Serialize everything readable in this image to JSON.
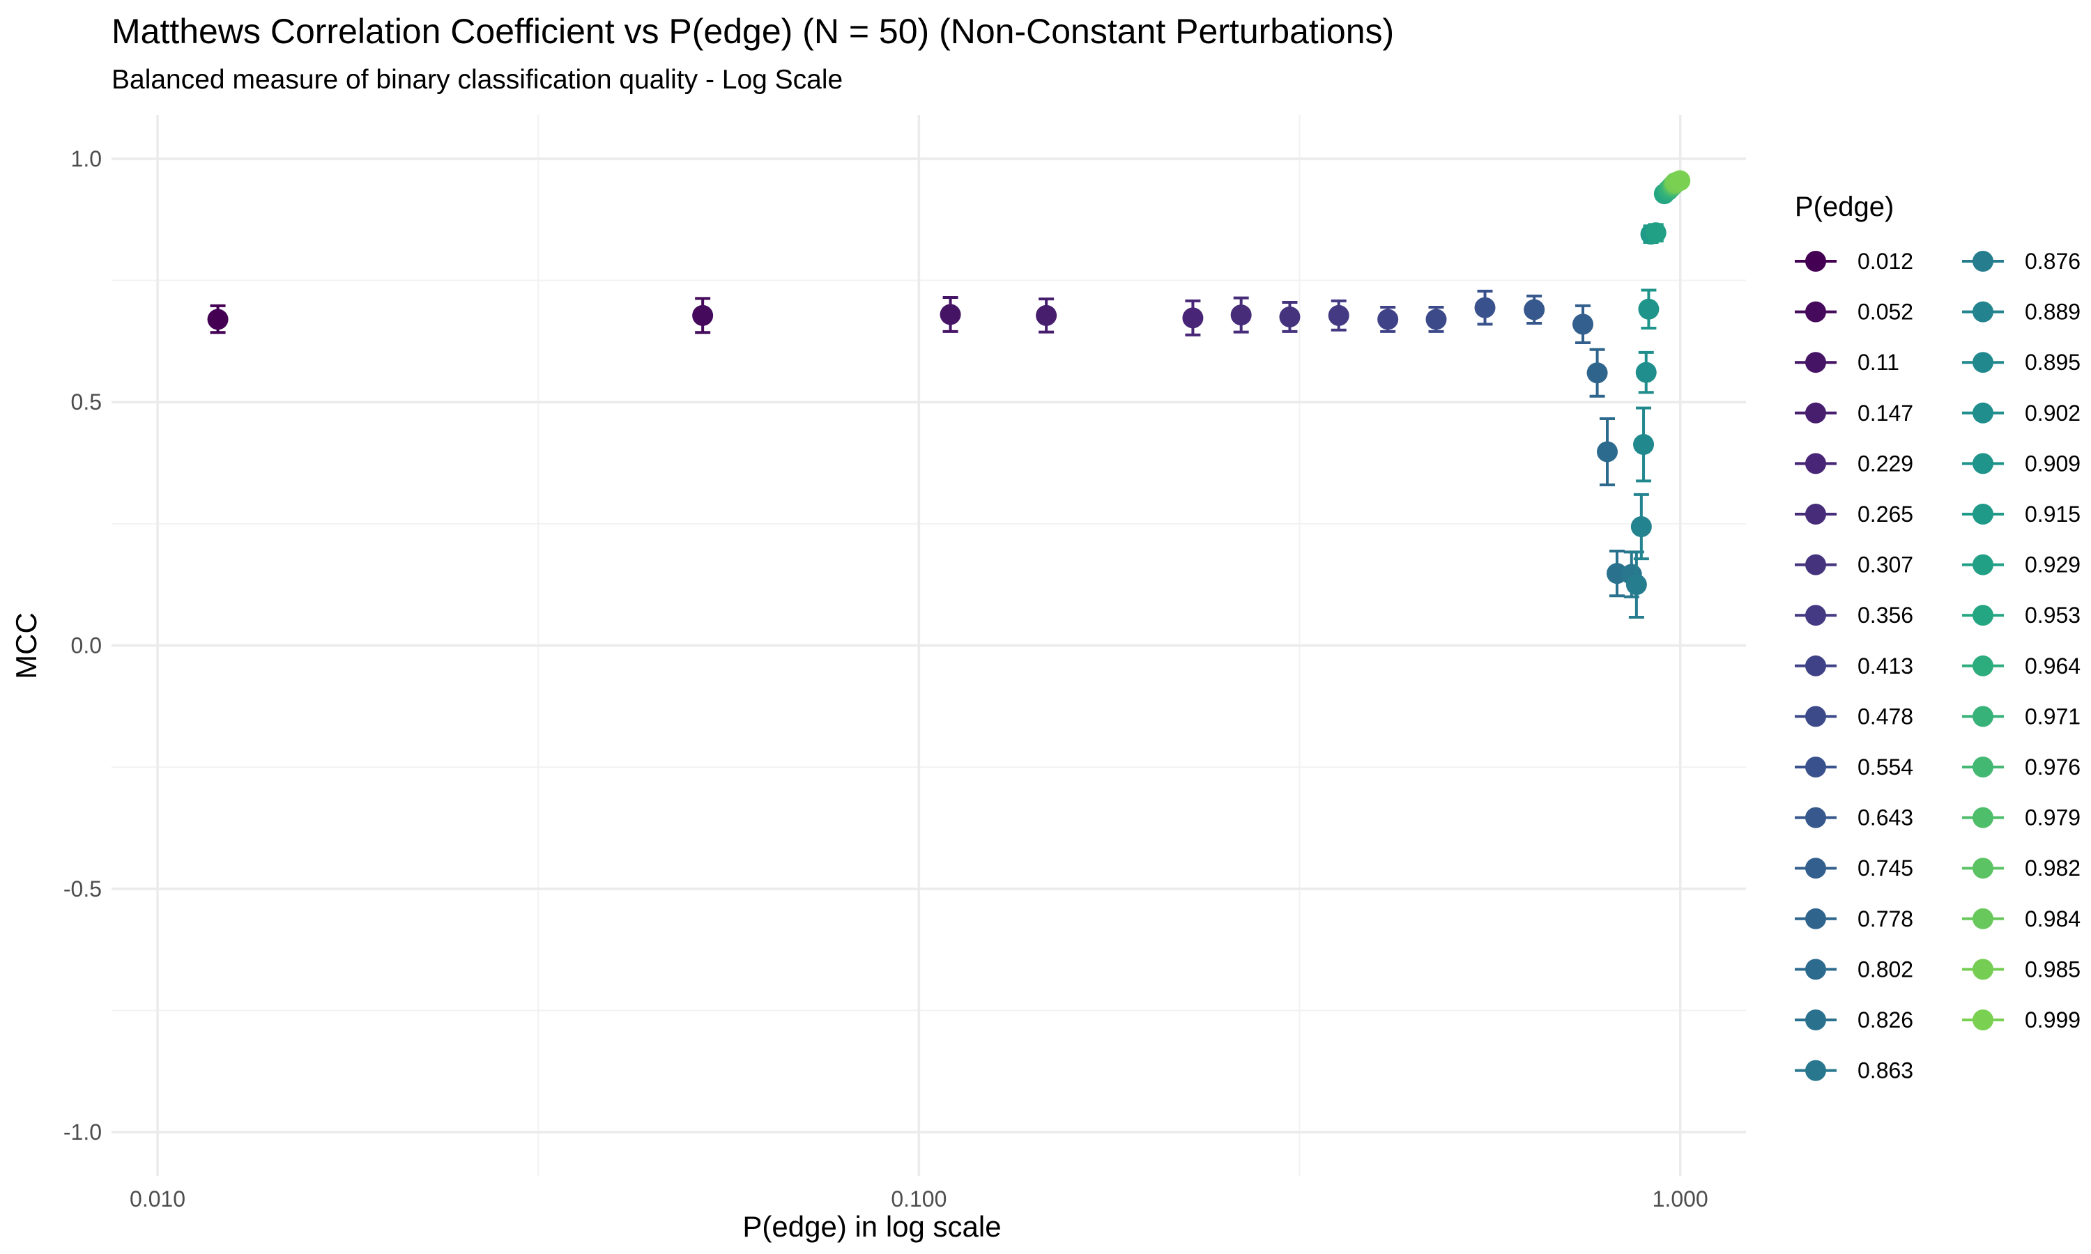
{
  "chart_data": {
    "type": "scatter",
    "title": "Matthews Correlation Coefficient vs P(edge) (N = 50) (Non-Constant Perturbations)",
    "subtitle": "Balanced measure of binary classification quality - Log Scale",
    "xlabel": "P(edge) in log scale",
    "ylabel": "MCC",
    "x_scale": "log10",
    "xlim": [
      0.0087,
      1.22
    ],
    "ylim": [
      -1.09,
      1.09
    ],
    "x_ticks": [
      0.01,
      0.1,
      1.0
    ],
    "x_tick_labels": [
      "0.010",
      "0.100",
      "1.000"
    ],
    "y_ticks": [
      -1.0,
      -0.5,
      0.0,
      0.5,
      1.0
    ],
    "y_tick_labels": [
      "-1.0",
      "-0.5",
      "0.0",
      "0.5",
      "1.0"
    ],
    "grid": true,
    "legend_title": "P(edge)",
    "legend_position": "right",
    "error_bars": true,
    "points": [
      {
        "label": "0.012",
        "x": 0.012,
        "y": 0.67,
        "ymin": 0.643,
        "ymax": 0.698,
        "color": "#440154"
      },
      {
        "label": "0.052",
        "x": 0.052,
        "y": 0.678,
        "ymin": 0.643,
        "ymax": 0.713,
        "color": "#450A5C"
      },
      {
        "label": "0.11",
        "x": 0.11,
        "y": 0.68,
        "ymin": 0.645,
        "ymax": 0.715,
        "color": "#461465"
      },
      {
        "label": "0.147",
        "x": 0.147,
        "y": 0.678,
        "ymin": 0.644,
        "ymax": 0.712,
        "color": "#471D6E"
      },
      {
        "label": "0.229",
        "x": 0.229,
        "y": 0.673,
        "ymin": 0.638,
        "ymax": 0.708,
        "color": "#482576"
      },
      {
        "label": "0.265",
        "x": 0.265,
        "y": 0.679,
        "ymin": 0.644,
        "ymax": 0.714,
        "color": "#472C7A"
      },
      {
        "label": "0.307",
        "x": 0.307,
        "y": 0.675,
        "ymin": 0.645,
        "ymax": 0.705,
        "color": "#45337D"
      },
      {
        "label": "0.356",
        "x": 0.356,
        "y": 0.678,
        "ymin": 0.648,
        "ymax": 0.708,
        "color": "#433A83"
      },
      {
        "label": "0.413",
        "x": 0.413,
        "y": 0.67,
        "ymin": 0.645,
        "ymax": 0.695,
        "color": "#404287"
      },
      {
        "label": "0.478",
        "x": 0.478,
        "y": 0.67,
        "ymin": 0.645,
        "ymax": 0.695,
        "color": "#3D4A8A"
      },
      {
        "label": "0.554",
        "x": 0.554,
        "y": 0.694,
        "ymin": 0.66,
        "ymax": 0.728,
        "color": "#39518C"
      },
      {
        "label": "0.643",
        "x": 0.643,
        "y": 0.69,
        "ymin": 0.662,
        "ymax": 0.718,
        "color": "#36588C"
      },
      {
        "label": "0.745",
        "x": 0.745,
        "y": 0.66,
        "ymin": 0.622,
        "ymax": 0.698,
        "color": "#325F8D"
      },
      {
        "label": "0.778",
        "x": 0.778,
        "y": 0.56,
        "ymin": 0.512,
        "ymax": 0.608,
        "color": "#2F658D"
      },
      {
        "label": "0.802",
        "x": 0.802,
        "y": 0.398,
        "ymin": 0.33,
        "ymax": 0.466,
        "color": "#2D6B8E"
      },
      {
        "label": "0.826",
        "x": 0.826,
        "y": 0.148,
        "ymin": 0.102,
        "ymax": 0.194,
        "color": "#2A718E"
      },
      {
        "label": "0.863",
        "x": 0.863,
        "y": 0.146,
        "ymin": 0.1,
        "ymax": 0.192,
        "color": "#28778E"
      },
      {
        "label": "0.876",
        "x": 0.876,
        "y": 0.125,
        "ymin": 0.058,
        "ymax": 0.192,
        "color": "#257D8E"
      },
      {
        "label": "0.889",
        "x": 0.889,
        "y": 0.244,
        "ymin": 0.178,
        "ymax": 0.31,
        "color": "#23838E"
      },
      {
        "label": "0.895",
        "x": 0.895,
        "y": 0.413,
        "ymin": 0.338,
        "ymax": 0.488,
        "color": "#21898D"
      },
      {
        "label": "0.902",
        "x": 0.902,
        "y": 0.561,
        "ymin": 0.52,
        "ymax": 0.602,
        "color": "#1F8E8C"
      },
      {
        "label": "0.909",
        "x": 0.909,
        "y": 0.691,
        "ymin": 0.652,
        "ymax": 0.73,
        "color": "#1F948B"
      },
      {
        "label": "0.915",
        "x": 0.915,
        "y": 0.845,
        "ymin": 0.828,
        "ymax": 0.862,
        "color": "#1F9A89"
      },
      {
        "label": "0.929",
        "x": 0.929,
        "y": 0.848,
        "ymin": 0.831,
        "ymax": 0.865,
        "color": "#21A086"
      },
      {
        "label": "0.953",
        "x": 0.953,
        "y": 0.928,
        "ymin": 0.92,
        "ymax": 0.936,
        "color": "#25A682"
      },
      {
        "label": "0.964",
        "x": 0.964,
        "y": 0.935,
        "ymin": 0.928,
        "ymax": 0.942,
        "color": "#2DAC7E"
      },
      {
        "label": "0.971",
        "x": 0.971,
        "y": 0.94,
        "ymin": 0.934,
        "ymax": 0.946,
        "color": "#37B278"
      },
      {
        "label": "0.976",
        "x": 0.976,
        "y": 0.944,
        "ymin": 0.938,
        "ymax": 0.95,
        "color": "#42B872"
      },
      {
        "label": "0.979",
        "x": 0.979,
        "y": 0.946,
        "ymin": 0.94,
        "ymax": 0.952,
        "color": "#4EBE6B"
      },
      {
        "label": "0.982",
        "x": 0.982,
        "y": 0.948,
        "ymin": 0.943,
        "ymax": 0.953,
        "color": "#5BC363"
      },
      {
        "label": "0.984",
        "x": 0.984,
        "y": 0.95,
        "ymin": 0.945,
        "ymax": 0.955,
        "color": "#68C85B"
      },
      {
        "label": "0.985",
        "x": 0.985,
        "y": 0.951,
        "ymin": 0.946,
        "ymax": 0.956,
        "color": "#75CD53"
      },
      {
        "label": "0.999",
        "x": 0.999,
        "y": 0.955,
        "ymin": 0.95,
        "ymax": 0.96,
        "color": "#7AD151"
      }
    ]
  }
}
